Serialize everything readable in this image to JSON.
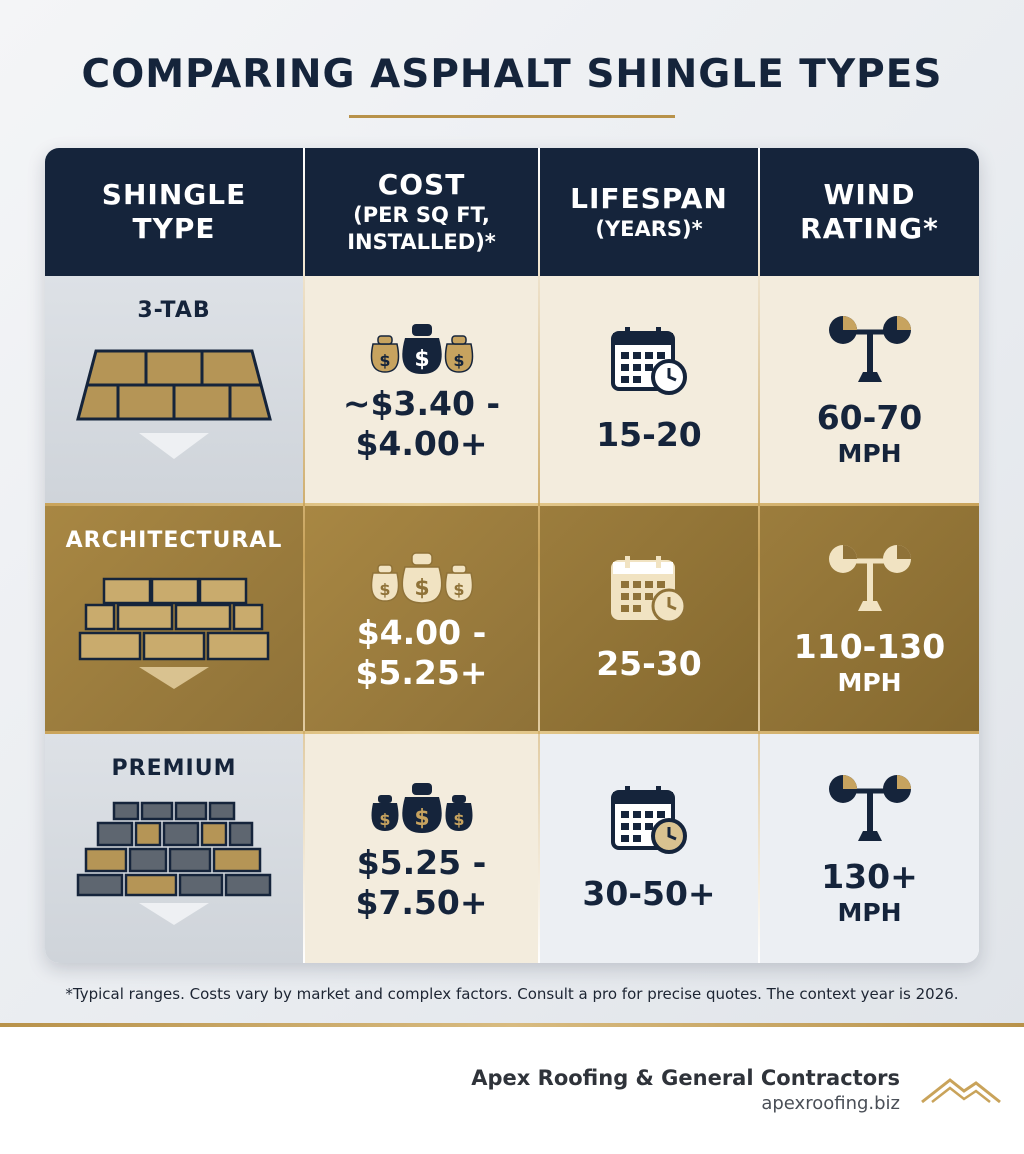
{
  "title": "COMPARING ASPHALT SHINGLE TYPES",
  "headers": {
    "type": [
      "SHINGLE",
      "TYPE"
    ],
    "cost": {
      "main": "COST",
      "sub": [
        "(PER SQ FT,",
        "INSTALLED)*"
      ]
    },
    "lifespan": {
      "main": "LIFESPAN",
      "sub": "(YEARS)*"
    },
    "wind": [
      "WIND",
      "RATING*"
    ]
  },
  "rows": [
    {
      "name": "3-TAB",
      "cost": [
        "~$3.40 -",
        "$4.00+"
      ],
      "lifespan": "15-20",
      "wind": "60-70",
      "unit": "MPH"
    },
    {
      "name": "ARCHITECTURAL",
      "cost": [
        "$4.00 -",
        "$5.25+"
      ],
      "lifespan": "25-30",
      "wind": "110-130",
      "unit": "MPH"
    },
    {
      "name": "PREMIUM",
      "cost": [
        "$5.25 -",
        "$7.50+"
      ],
      "lifespan": "30-50+",
      "wind": "130+",
      "unit": "MPH"
    }
  ],
  "icons": {
    "shingle": "shingle-roof-icon",
    "money": "money-bags-icon",
    "calendar": "calendar-clock-icon",
    "wind": "anemometer-icon",
    "logo": "roof-peaks-logo"
  },
  "colors": {
    "navy": "#15243b",
    "gold": "#b8924a",
    "cream": "#f3ecdd"
  },
  "footnote": "*Typical ranges. Costs vary by market and complex factors. Consult a pro for precise quotes. The context year is 2026.",
  "footer": {
    "company": "Apex Roofing & General Contractors",
    "site": "apexroofing.biz"
  }
}
